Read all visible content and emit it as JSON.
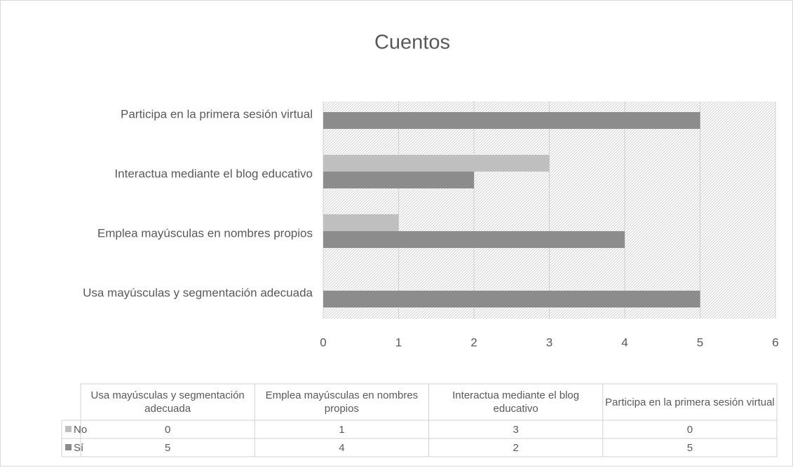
{
  "chart_data": {
    "type": "bar",
    "orientation": "horizontal",
    "title": "Cuentos",
    "categories": [
      "Usa mayúsculas y segmentación adecuada",
      "Emplea mayúsculas en nombres propios",
      "Interactua mediante el blog educativo",
      "Participa en la primera sesión virtual"
    ],
    "series": [
      {
        "name": "No",
        "color": "#bfbfbf",
        "values": [
          0,
          1,
          3,
          0
        ]
      },
      {
        "name": "Sí",
        "color": "#8c8c8c",
        "values": [
          5,
          4,
          2,
          5
        ]
      }
    ],
    "xlim": [
      0,
      6
    ],
    "xticks": [
      0,
      1,
      2,
      3,
      4,
      5,
      6
    ],
    "grid": true,
    "data_table": true
  }
}
